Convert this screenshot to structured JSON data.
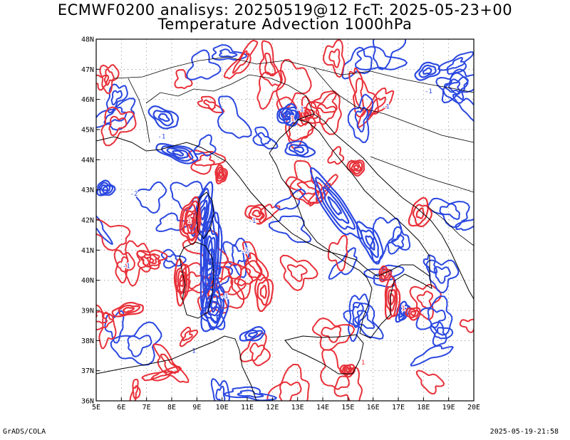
{
  "header": {
    "title_line1": "ECMWF0200 analisys: 20250519@12 FcT: 2025-05-23+00",
    "title_line2": "Temperature Advection 1000hPa"
  },
  "footer": {
    "software": "GrADS/COLA",
    "timestamp": "2025-05-19-21:58"
  },
  "map": {
    "lon_range": [
      5,
      20
    ],
    "lat_range": [
      36,
      48
    ],
    "lon_ticks": [
      "5E",
      "6E",
      "7E",
      "8E",
      "9E",
      "10E",
      "11E",
      "12E",
      "13E",
      "14E",
      "15E",
      "16E",
      "17E",
      "18E",
      "19E",
      "20E"
    ],
    "lat_ticks": [
      "36N",
      "37N",
      "38N",
      "39N",
      "40N",
      "41N",
      "42N",
      "43N",
      "44N",
      "45N",
      "46N",
      "47N",
      "48N"
    ],
    "grid": "dotted",
    "colors": {
      "positive": "#e8313a",
      "negative": "#2b48e0",
      "coast": "#000000"
    },
    "contour_labels": [
      {
        "text": "-1",
        "lon": 13.1,
        "lat": 45.6
      },
      {
        "text": "-1",
        "lon": 16.5,
        "lat": 45.7
      },
      {
        "text": "-1",
        "lon": 18.2,
        "lat": 46.2
      },
      {
        "text": "-1",
        "lon": 11.2,
        "lat": 41.9
      },
      {
        "text": "-1",
        "lon": 10.1,
        "lat": 39.4
      },
      {
        "text": "-2",
        "lon": 10.9,
        "lat": 40.9
      },
      {
        "text": "-2",
        "lon": 6.5,
        "lat": 42.8
      },
      {
        "text": "-1",
        "lon": 6.2,
        "lat": 40.4
      },
      {
        "text": "-1",
        "lon": 8.8,
        "lat": 37.6
      },
      {
        "text": "-1",
        "lon": 7.6,
        "lat": 44.7
      },
      {
        "text": "1",
        "lon": 12.8,
        "lat": 45.3
      },
      {
        "text": "1",
        "lon": 17.2,
        "lat": 39.0
      },
      {
        "text": "1",
        "lon": 8.7,
        "lat": 41.9
      },
      {
        "text": "1",
        "lon": 15.6,
        "lat": 37.2
      }
    ]
  }
}
